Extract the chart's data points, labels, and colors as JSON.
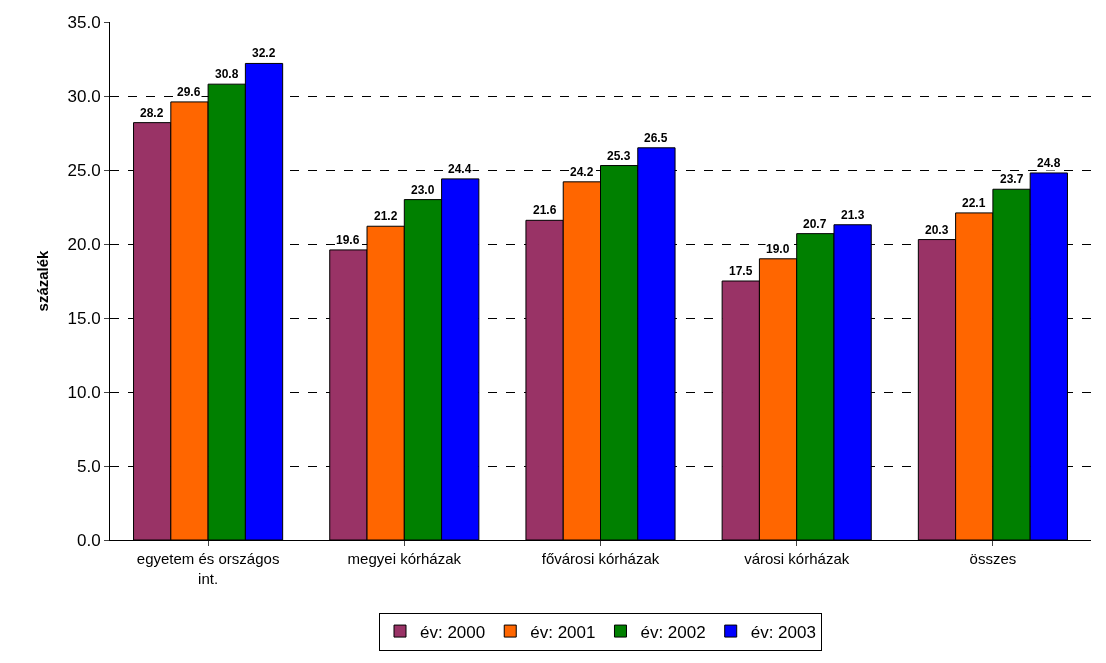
{
  "chart_data": {
    "type": "bar",
    "ylabel": "százalék",
    "categories": [
      "egyetem és országos\nint.",
      "megyei kórházak",
      "fővárosi kórházak",
      "városi kórházak",
      "összes"
    ],
    "series": [
      {
        "name": "év: 2000",
        "color": "#993366",
        "values": [
          28.2,
          19.6,
          21.6,
          17.5,
          20.3
        ],
        "value_labels": [
          "28.2",
          "19.6",
          "21.6",
          "17.5",
          "20.3"
        ]
      },
      {
        "name": "év: 2001",
        "color": "#ff6600",
        "values": [
          29.6,
          21.2,
          24.2,
          19.0,
          22.1
        ],
        "value_labels": [
          "29.6",
          "21.2",
          "24.2",
          "19.0",
          "22.1"
        ]
      },
      {
        "name": "év: 2002",
        "color": "#008000",
        "values": [
          30.8,
          23.0,
          25.3,
          20.7,
          23.7
        ],
        "value_labels": [
          "30.8",
          "23.0",
          "25.3",
          "20.7",
          "23.7"
        ]
      },
      {
        "name": "év: 2003",
        "color": "#0000ff",
        "values": [
          32.2,
          24.4,
          26.5,
          21.3,
          24.8
        ],
        "value_labels": [
          "32.2",
          "24.4",
          "26.5",
          "21.3",
          "24.8"
        ]
      }
    ],
    "ylim": [
      0,
      35
    ],
    "yticks": [
      {
        "value": 0,
        "label": "0.0"
      },
      {
        "value": 5,
        "label": "5.0"
      },
      {
        "value": 10,
        "label": "10.0"
      },
      {
        "value": 15,
        "label": "15.0"
      },
      {
        "value": 20,
        "label": "20.0"
      },
      {
        "value": 25,
        "label": "25.0"
      },
      {
        "value": 30,
        "label": "30.0"
      },
      {
        "value": 35,
        "label": "35.0"
      }
    ],
    "grid": "y",
    "legend": "bottom",
    "line_style": "dashed"
  }
}
